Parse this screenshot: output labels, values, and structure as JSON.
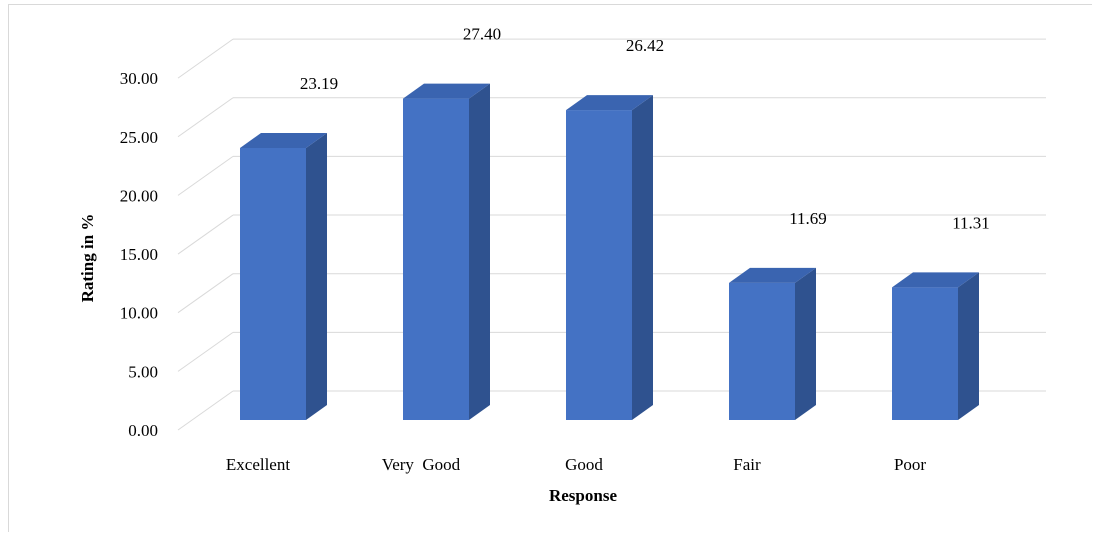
{
  "chart_data": {
    "type": "bar",
    "style": "3d-column",
    "categories": [
      "Excellent",
      "Very  Good",
      "Good",
      "Fair",
      "Poor"
    ],
    "values": [
      23.19,
      27.4,
      26.42,
      11.69,
      11.31
    ],
    "data_labels": [
      "23.19",
      "27.40",
      "26.42",
      "11.69",
      "11.31"
    ],
    "y_ticks": [
      "0.00",
      "5.00",
      "10.00",
      "15.00",
      "20.00",
      "25.00",
      "30.00"
    ],
    "ylim": [
      0,
      30
    ],
    "xlabel": "Response",
    "ylabel": "Rating in %",
    "title": "",
    "grid": true,
    "legend": "none"
  },
  "colors": {
    "bar_front": "#4472c4",
    "bar_side": "#2f528f",
    "bar_top": "#3a64b0",
    "grid": "#d9d9d9"
  }
}
